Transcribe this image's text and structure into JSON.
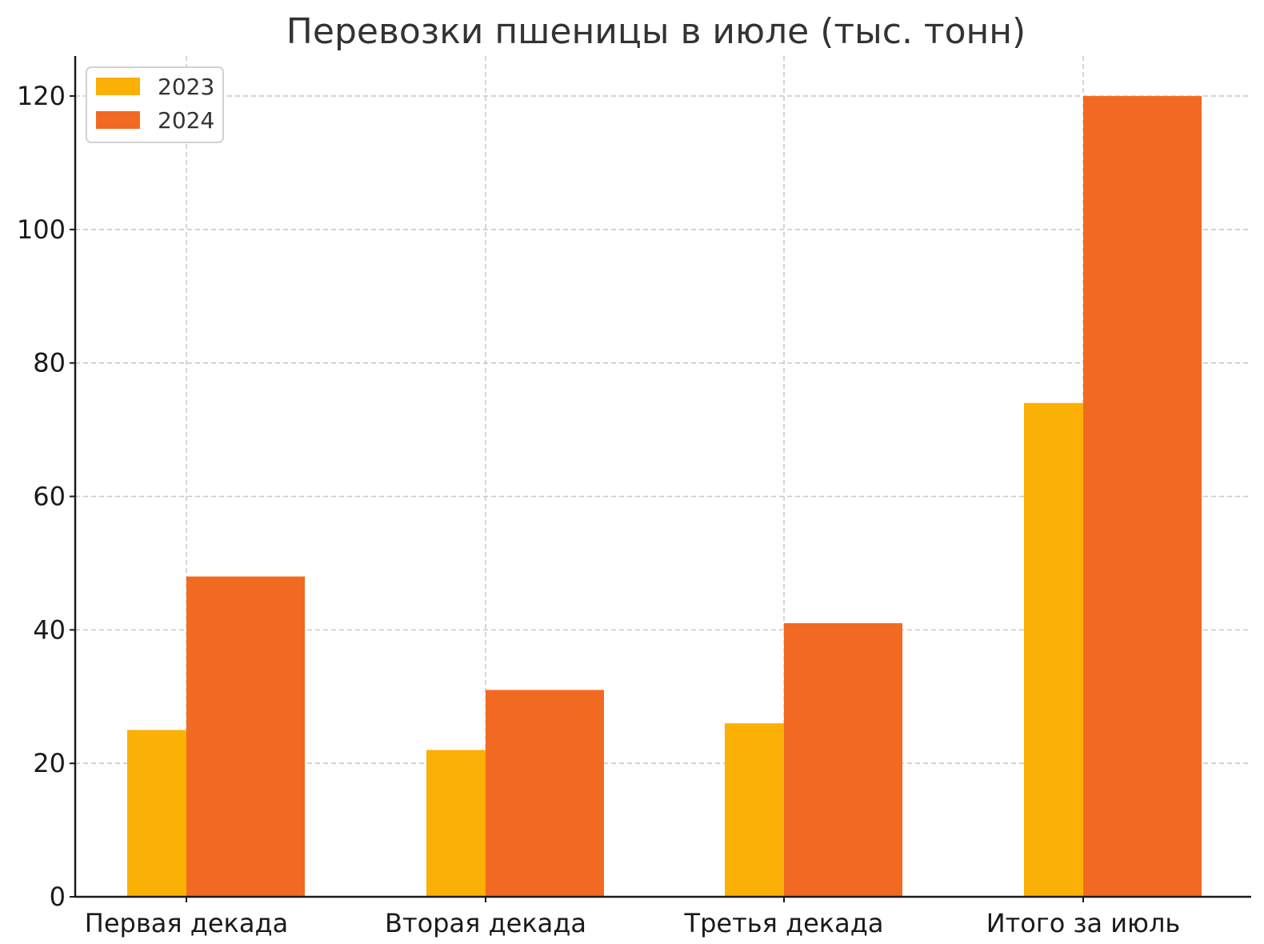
{
  "chart_data": {
    "type": "bar",
    "title": "Перевозки пшеницы в июле (тыс. тонн)",
    "xlabel": "",
    "ylabel": "",
    "categories": [
      "Первая декада",
      "Вторая декада",
      "Третья декада",
      "Итого за июль"
    ],
    "series": [
      {
        "name": "2023",
        "values": [
          25,
          22,
          26,
          74
        ],
        "color": "#FBB005"
      },
      {
        "name": "2024",
        "values": [
          48,
          31,
          41,
          120
        ],
        "color": "#F26A22"
      }
    ],
    "ylim": [
      0,
      126
    ],
    "yticks": [
      0,
      20,
      40,
      60,
      80,
      100,
      120
    ],
    "grid": true,
    "legend_position": "top-left"
  }
}
